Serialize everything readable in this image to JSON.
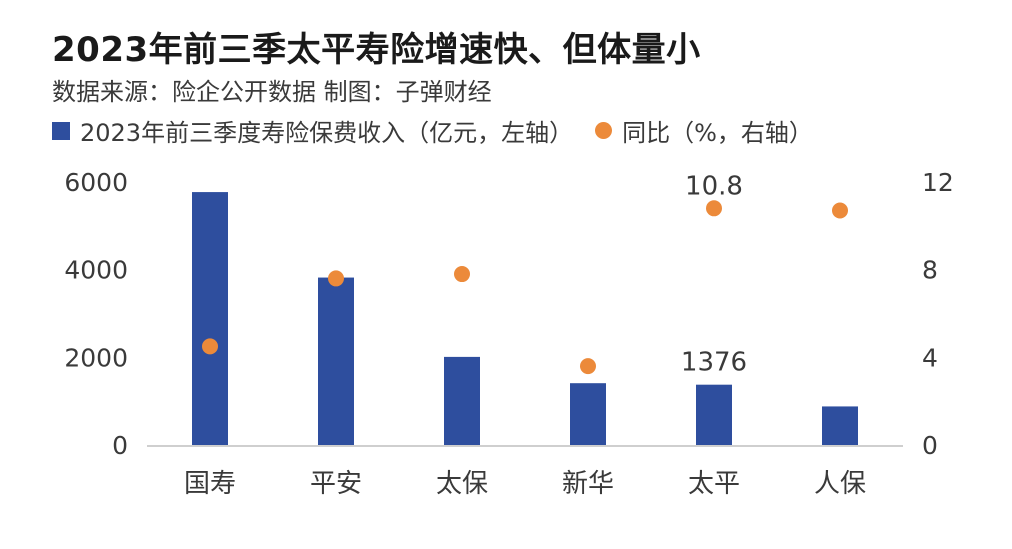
{
  "title": "2023年前三季太平寿险增速快、但体量小",
  "source": "数据来源：险企公开数据  制图：子弹财经",
  "legend": {
    "bar_label": "2023年前三季度寿险保费收入（亿元，左轴）",
    "dot_label": "同比（%，右轴）"
  },
  "colors": {
    "bar": "#2e4e9e",
    "dot": "#ec8a3a",
    "axis": "#bfbfbf"
  },
  "chart_data": {
    "type": "bar",
    "categories": [
      "国寿",
      "平安",
      "太保",
      "新华",
      "太平",
      "人保"
    ],
    "series": [
      {
        "name": "2023年前三季度寿险保费收入（亿元，左轴）",
        "type": "bar",
        "axis": "left",
        "values": [
          5770,
          3820,
          2010,
          1410,
          1376,
          880
        ]
      },
      {
        "name": "同比（%，右轴）",
        "type": "scatter",
        "axis": "right",
        "values": [
          4.5,
          7.6,
          7.8,
          3.6,
          10.8,
          10.7
        ]
      }
    ],
    "ylim_left": [
      0,
      6000
    ],
    "ylim_right": [
      0,
      12
    ],
    "yticks_left": [
      "0",
      "2000",
      "4000",
      "6000"
    ],
    "yticks_right": [
      "0",
      "4",
      "8",
      "12"
    ],
    "data_labels": [
      {
        "series": 0,
        "index": 4,
        "text": "1376"
      },
      {
        "series": 1,
        "index": 4,
        "text": "10.8"
      }
    ],
    "grid": false,
    "legend_position": "top-left"
  }
}
